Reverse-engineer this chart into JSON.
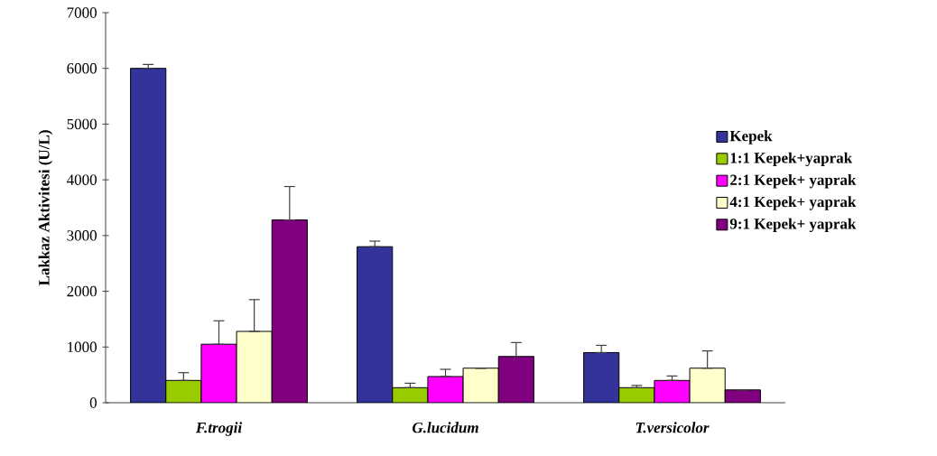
{
  "chart_data": {
    "type": "bar",
    "ylabel": "Lakkaz Aktivitesi (U/L)",
    "categories": [
      "F.trogii",
      "G.lucidum",
      "T.versicolor"
    ],
    "series": [
      {
        "name": "Kepek",
        "color": "#333399",
        "values": [
          6000,
          2800,
          900
        ],
        "errors": [
          [
            6000,
            6070
          ],
          [
            2800,
            2900
          ],
          [
            900,
            1030
          ]
        ]
      },
      {
        "name": "1:1 Kepek+yaprak",
        "color": "#99cc00",
        "values": [
          400,
          270,
          270
        ],
        "errors": [
          [
            400,
            540
          ],
          [
            270,
            350
          ],
          [
            270,
            310
          ]
        ]
      },
      {
        "name": "2:1 Kepek+ yaprak",
        "color": "#ff00ff",
        "values": [
          1050,
          470,
          400
        ],
        "errors": [
          [
            1050,
            1470
          ],
          [
            470,
            600
          ],
          [
            400,
            480
          ]
        ]
      },
      {
        "name": "4:1 Kepek+ yaprak",
        "color": "#ffffcc",
        "values": [
          1280,
          620,
          620
        ],
        "errors": [
          [
            1280,
            1850
          ],
          null,
          [
            620,
            930
          ]
        ]
      },
      {
        "name": "9:1 Kepek+ yaprak",
        "color": "#800080",
        "values": [
          3280,
          830,
          230
        ],
        "errors": [
          [
            3280,
            3880
          ],
          [
            830,
            1080
          ],
          null
        ]
      }
    ],
    "ylim": [
      0,
      7000
    ],
    "yticks": [
      0,
      1000,
      2000,
      3000,
      4000,
      5000,
      6000,
      7000
    ],
    "legend": "right"
  }
}
